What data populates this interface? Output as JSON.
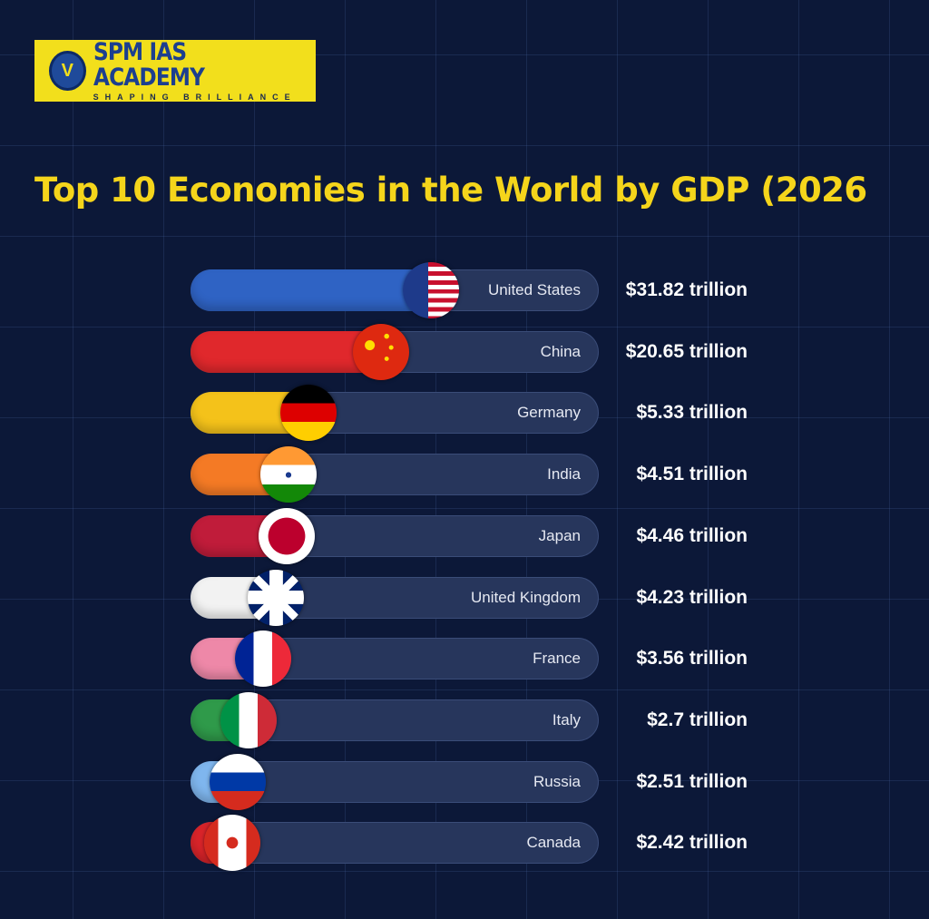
{
  "logo": {
    "emblem_label": "V",
    "name": "SPM IAS ACADEMY",
    "tagline": "SHAPING BRILLIANCE"
  },
  "chart_data": {
    "type": "bar",
    "title": "Top 10 Economies in the World by GDP (2026",
    "unit": "trillion USD",
    "categories": [
      "United States",
      "China",
      "Germany",
      "India",
      "Japan",
      "United Kingdom",
      "France",
      "Italy",
      "Russia",
      "Canada"
    ],
    "values": [
      31.82,
      20.65,
      5.33,
      4.51,
      4.46,
      4.23,
      3.56,
      2.7,
      2.51,
      2.42
    ],
    "labels": [
      "$31.82 trillion",
      "$20.65 trillion",
      "$5.33 trillion",
      "$4.51 trillion",
      "$4.46 trillion",
      "$4.23 trillion",
      "$3.56 trillion",
      "$2.7 trillion",
      "$2.51 trillion",
      "$2.42 trillion"
    ],
    "bar_colors": [
      "#2f63c4",
      "#e0282c",
      "#f4c21a",
      "#f47a25",
      "#c01c3a",
      "#f2f2f2",
      "#ee88a8",
      "#2f9a4a",
      "#7fb6ee",
      "#d9242a"
    ],
    "flag_icons": [
      "us-flag-icon",
      "china-flag-icon",
      "germany-flag-icon",
      "india-flag-icon",
      "japan-flag-icon",
      "uk-flag-icon",
      "france-flag-icon",
      "italy-flag-icon",
      "russia-flag-icon",
      "canada-flag-icon"
    ]
  }
}
